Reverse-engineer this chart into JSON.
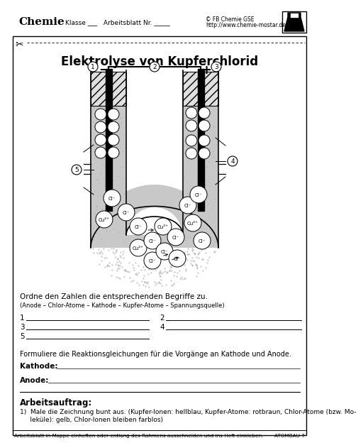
{
  "title": "Elektrolyse von Kupferchlorid",
  "header_copy": "© FB Chemie GSE",
  "header_url": "http://www.chemie-mostar.de",
  "footer_text": "Arbeitsblatt in Mappe einheften oder entlang des Rahmens ausschneiden und ins Heft einkleben.",
  "footer_right": "ATOMBAU 7",
  "question1": "Ordne den Zahlen die entsprechenden Begriffe zu.",
  "question1b": "(Anode – Chlor-Atome – Kathode – Kupfer-Atome – Spannungsquelle)",
  "q2_title": "Formuliere die Reaktionsgleichungen für die Vorgänge an Kathode und Anode.",
  "kathode_label": "Kathode:",
  "anode_label": "Anode:",
  "arbeitsauftrag": "Arbeitsauftrag:",
  "arbeitsauftrag_1": "1)  Male die Zeichnung bunt aus. (Kupfer-Ionen: hellblau, Kupfer-Atome: rotbraun, Chlor-Atome (bzw. Mo-",
  "arbeitsauftrag_2": "     leküle): gelb, Chlor-Ionen bleiben farblos)",
  "bg_color": "#ffffff",
  "border_color": "#000000"
}
